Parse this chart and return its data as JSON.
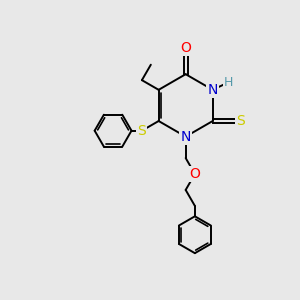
{
  "background_color": "#e8e8e8",
  "bond_color": "#000000",
  "atom_colors": {
    "O": "#ff0000",
    "N": "#0000cd",
    "S": "#cccc00",
    "H": "#5599aa",
    "C": "#000000"
  },
  "figsize": [
    3.0,
    3.0
  ],
  "dpi": 100,
  "lw": 1.4,
  "lw_double": 1.2
}
